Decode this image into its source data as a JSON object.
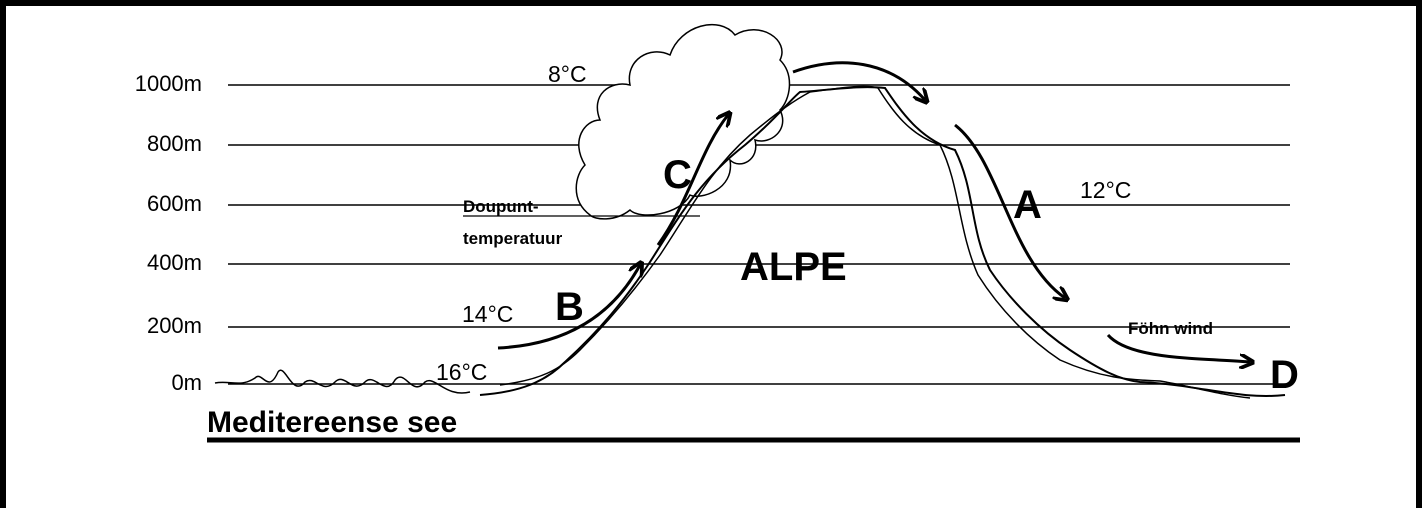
{
  "altitude_labels": [
    "1000m",
    "800m",
    "600m",
    "400m",
    "200m",
    "0m"
  ],
  "labels": {
    "cloud_temp": "8°C",
    "dewpoint_1": "Doupunt-",
    "dewpoint_2": "temperatuur",
    "point_c": "C",
    "mountain": "ALPE",
    "point_a": "A",
    "lee_temp": "12°C",
    "point_b": "B",
    "mid_temp": "14°C",
    "base_temp": "16°C",
    "wind": "Föhn wind",
    "point_d": "D",
    "sea": "Meditereense see"
  }
}
